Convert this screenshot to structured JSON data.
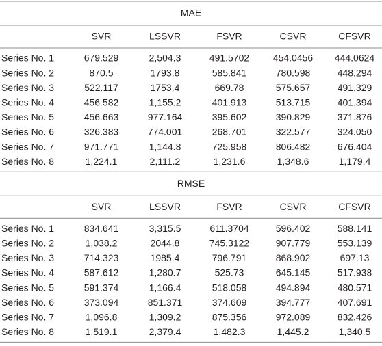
{
  "table": {
    "sections": [
      {
        "title": "MAE",
        "columns": [
          "SVR",
          "LSSVR",
          "FSVR",
          "CSVR",
          "CFSVR"
        ],
        "rows": [
          {
            "label": "Series No. 1",
            "values": [
              "679.529",
              "2,504.3",
              "491.5702",
              "454.0456",
              "444.0624"
            ]
          },
          {
            "label": "Series No. 2",
            "values": [
              "870.5",
              "1793.8",
              "585.841",
              "780.598",
              "448.294"
            ]
          },
          {
            "label": "Series No. 3",
            "values": [
              "522.117",
              "1753.4",
              "669.78",
              "575.657",
              "491.329"
            ]
          },
          {
            "label": "Series No. 4",
            "values": [
              "456.582",
              "1,155.2",
              "401.913",
              "513.715",
              "401.394"
            ]
          },
          {
            "label": "Series No. 5",
            "values": [
              "456.663",
              "977.164",
              "395.602",
              "390.829",
              "371.876"
            ]
          },
          {
            "label": "Series No. 6",
            "values": [
              "326.383",
              "774.001",
              "268.701",
              "322.577",
              "324.050"
            ]
          },
          {
            "label": "Series No. 7",
            "values": [
              "971.771",
              "1,144.8",
              "725.958",
              "806.482",
              "676.404"
            ]
          },
          {
            "label": "Series No. 8",
            "values": [
              "1,224.1",
              "2,111.2",
              "1,231.6",
              "1,348.6",
              "1,179.4"
            ]
          }
        ]
      },
      {
        "title": "RMSE",
        "columns": [
          "SVR",
          "LSSVR",
          "FSVR",
          "CSVR",
          "CFSVR"
        ],
        "rows": [
          {
            "label": "Series No. 1",
            "values": [
              "834.641",
              "3,315.5",
              "611.3704",
              "596.402",
              "588.141"
            ]
          },
          {
            "label": "Series No. 2",
            "values": [
              "1,038.2",
              "2044.8",
              "745.3122",
              "907.779",
              "553.139"
            ]
          },
          {
            "label": "Series No. 3",
            "values": [
              "714.323",
              "1985.4",
              "796.791",
              "868.902",
              "697.13"
            ]
          },
          {
            "label": "Series No. 4",
            "values": [
              "587.612",
              "1,280.7",
              "525.73",
              "645.145",
              "517.938"
            ]
          },
          {
            "label": "Series No. 5",
            "values": [
              "591.374",
              "1,166.4",
              "518.058",
              "494.894",
              "480.571"
            ]
          },
          {
            "label": "Series No. 6",
            "values": [
              "373.094",
              "851.371",
              "374.609",
              "394.777",
              "407.691"
            ]
          },
          {
            "label": "Series No. 7",
            "values": [
              "1,096.8",
              "1,309.2",
              "875.356",
              "972.089",
              "832.426"
            ]
          },
          {
            "label": "Series No. 8",
            "values": [
              "1,519.1",
              "2,379.4",
              "1,482.3",
              "1,445.2",
              "1,340.5"
            ]
          }
        ]
      }
    ]
  }
}
